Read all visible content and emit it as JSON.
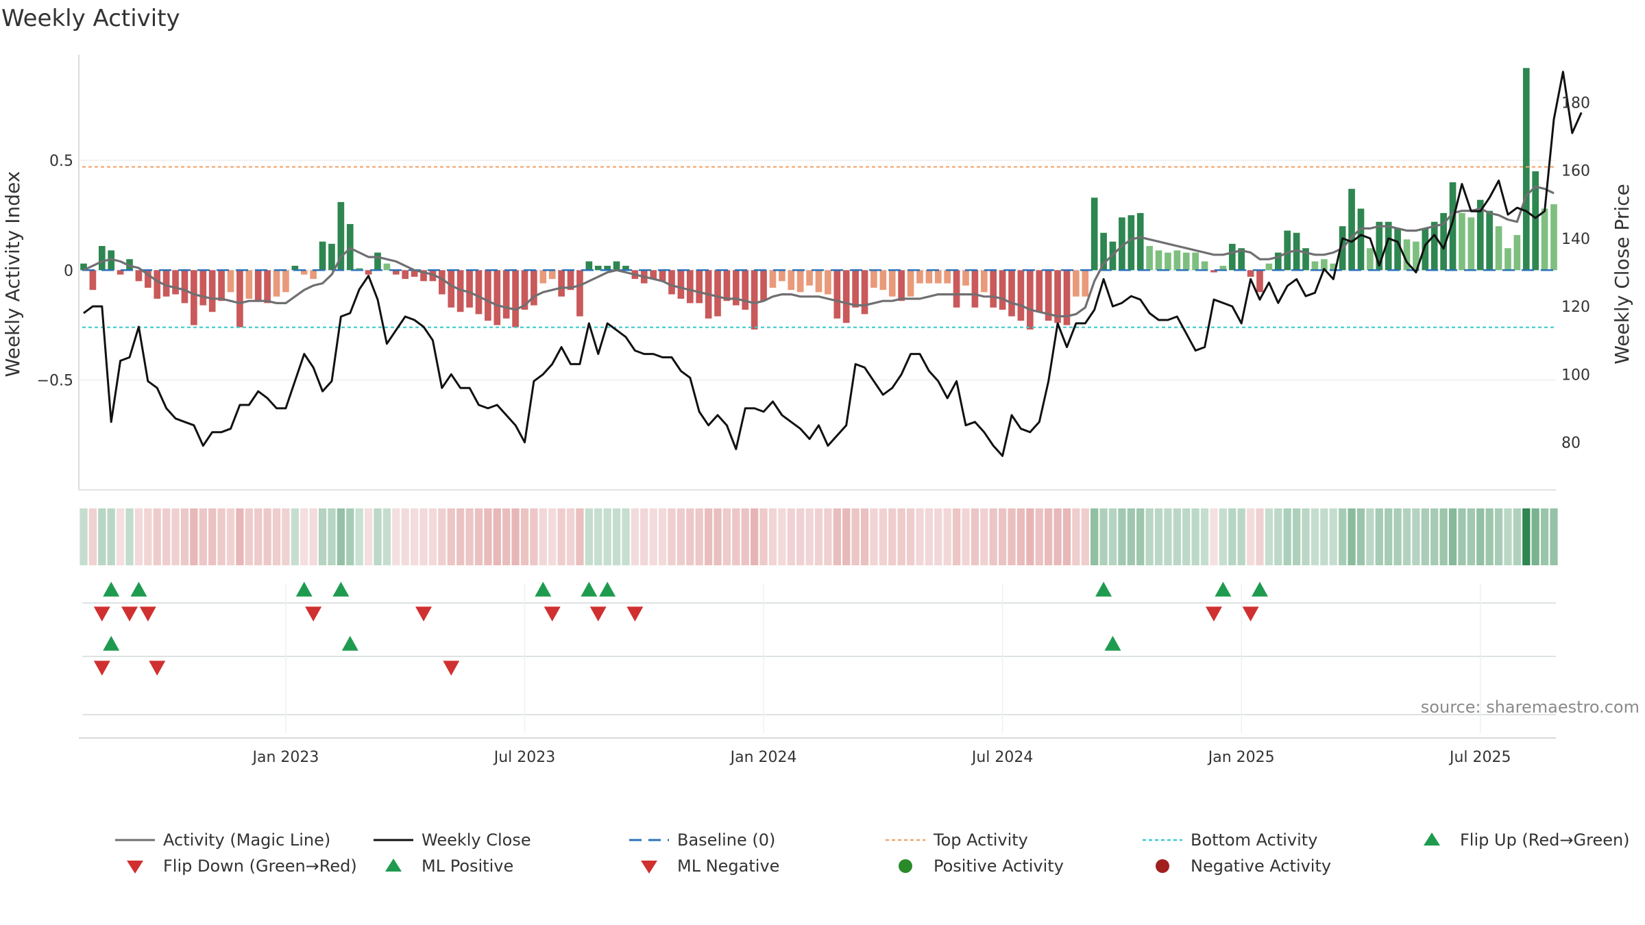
{
  "chart_data": {
    "type": "bar",
    "title": "Weekly Activity",
    "ylabel_left": "Weekly Activity Index",
    "ylabel_right": "Weekly Close Price",
    "source": "source: sharemaestro.com",
    "y_left": {
      "range": [
        -1,
        0.98
      ],
      "ticks": [
        {
          "v": 0.5,
          "label": "0.5"
        },
        {
          "v": 0,
          "label": "0"
        },
        {
          "v": -0.5,
          "label": "−0.5"
        }
      ]
    },
    "y_right": {
      "range": [
        66,
        194
      ],
      "ticks": [
        {
          "v": 180,
          "label": "180"
        },
        {
          "v": 160,
          "label": "160"
        },
        {
          "v": 140,
          "label": "140"
        },
        {
          "v": 120,
          "label": "120"
        },
        {
          "v": 100,
          "label": "100"
        },
        {
          "v": 80,
          "label": "80"
        }
      ]
    },
    "x_ticks": [
      {
        "week": 22,
        "label": "Jan 2023"
      },
      {
        "week": 48,
        "label": "Jul 2023"
      },
      {
        "week": 74,
        "label": "Jan 2024"
      },
      {
        "week": 100,
        "label": "Jul 2024"
      },
      {
        "week": 126,
        "label": "Jan 2025"
      },
      {
        "week": 152,
        "label": "Jul 2025"
      }
    ],
    "top_activity": 0.47,
    "bottom_activity": -0.26,
    "activity": [
      0.03,
      -0.09,
      0.11,
      0.09,
      -0.02,
      0.05,
      -0.05,
      -0.08,
      -0.13,
      -0.12,
      -0.11,
      -0.15,
      -0.25,
      -0.16,
      -0.19,
      -0.14,
      -0.1,
      -0.26,
      -0.13,
      -0.14,
      -0.15,
      -0.12,
      -0.1,
      0.02,
      -0.02,
      -0.04,
      0.13,
      0.12,
      0.31,
      0.21,
      0.01,
      -0.02,
      0.08,
      0.03,
      -0.02,
      -0.04,
      -0.03,
      -0.05,
      -0.05,
      -0.11,
      -0.17,
      -0.19,
      -0.17,
      -0.2,
      -0.23,
      -0.25,
      -0.22,
      -0.26,
      -0.18,
      -0.16,
      -0.06,
      -0.04,
      -0.12,
      -0.09,
      -0.21,
      0.04,
      0.02,
      0.02,
      0.04,
      0.02,
      -0.04,
      -0.06,
      -0.04,
      -0.05,
      -0.11,
      -0.13,
      -0.15,
      -0.15,
      -0.22,
      -0.21,
      -0.14,
      -0.16,
      -0.18,
      -0.27,
      -0.14,
      -0.08,
      -0.05,
      -0.09,
      -0.1,
      -0.07,
      -0.1,
      -0.11,
      -0.22,
      -0.24,
      -0.17,
      -0.2,
      -0.08,
      -0.09,
      -0.12,
      -0.14,
      -0.12,
      -0.06,
      -0.06,
      -0.06,
      -0.06,
      -0.17,
      -0.07,
      -0.17,
      -0.1,
      -0.17,
      -0.18,
      -0.21,
      -0.23,
      -0.27,
      -0.19,
      -0.23,
      -0.24,
      -0.25,
      -0.12,
      -0.12,
      0.33,
      0.17,
      0.13,
      0.24,
      0.25,
      0.26,
      0.11,
      0.09,
      0.08,
      0.09,
      0.08,
      0.08,
      0.04,
      -0.01,
      0.02,
      0.12,
      0.1,
      -0.03,
      -0.1,
      0.03,
      0.08,
      0.18,
      0.17,
      0.1,
      0.04,
      0.05,
      0.03,
      0.2,
      0.37,
      0.28,
      0.1,
      0.22,
      0.22,
      0.19,
      0.14,
      0.13,
      0.19,
      0.22,
      0.26,
      0.4,
      0.26,
      0.24,
      0.32,
      0.27,
      0.2,
      0.1,
      0.16,
      0.92,
      0.45,
      0.28,
      0.3
    ],
    "magic_line": [
      0,
      0.02,
      0.04,
      0.05,
      0.04,
      0.02,
      0.01,
      -0.02,
      -0.05,
      -0.07,
      -0.08,
      -0.09,
      -0.11,
      -0.12,
      -0.13,
      -0.13,
      -0.14,
      -0.15,
      -0.14,
      -0.14,
      -0.14,
      -0.15,
      -0.15,
      -0.12,
      -0.09,
      -0.07,
      -0.06,
      -0.02,
      0.06,
      0.1,
      0.08,
      0.06,
      0.06,
      0.05,
      0.04,
      0.02,
      0.0,
      -0.01,
      -0.02,
      -0.04,
      -0.07,
      -0.09,
      -0.1,
      -0.12,
      -0.14,
      -0.16,
      -0.17,
      -0.18,
      -0.16,
      -0.12,
      -0.1,
      -0.09,
      -0.08,
      -0.08,
      -0.07,
      -0.05,
      -0.03,
      -0.01,
      0.0,
      -0.01,
      -0.02,
      -0.03,
      -0.04,
      -0.05,
      -0.07,
      -0.08,
      -0.09,
      -0.1,
      -0.11,
      -0.12,
      -0.13,
      -0.13,
      -0.14,
      -0.15,
      -0.14,
      -0.12,
      -0.11,
      -0.11,
      -0.12,
      -0.12,
      -0.12,
      -0.13,
      -0.14,
      -0.15,
      -0.16,
      -0.16,
      -0.15,
      -0.14,
      -0.14,
      -0.13,
      -0.13,
      -0.13,
      -0.12,
      -0.11,
      -0.11,
      -0.11,
      -0.11,
      -0.11,
      -0.12,
      -0.12,
      -0.13,
      -0.15,
      -0.16,
      -0.18,
      -0.19,
      -0.2,
      -0.21,
      -0.21,
      -0.2,
      -0.17,
      -0.05,
      0.03,
      0.07,
      0.11,
      0.14,
      0.15,
      0.14,
      0.13,
      0.12,
      0.11,
      0.1,
      0.09,
      0.08,
      0.07,
      0.07,
      0.08,
      0.09,
      0.08,
      0.05,
      0.05,
      0.06,
      0.08,
      0.09,
      0.08,
      0.07,
      0.07,
      0.08,
      0.1,
      0.15,
      0.19,
      0.19,
      0.2,
      0.2,
      0.19,
      0.18,
      0.18,
      0.19,
      0.2,
      0.21,
      0.26,
      0.27,
      0.27,
      0.28,
      0.26,
      0.25,
      0.23,
      0.22,
      0.34,
      0.38,
      0.37,
      0.35
    ],
    "weekly_close": [
      118,
      120,
      120,
      86,
      104,
      105,
      114,
      98,
      96,
      90,
      87,
      86,
      85,
      79,
      83,
      83,
      84,
      91,
      91,
      95,
      93,
      90,
      90,
      98,
      106,
      102,
      95,
      98,
      117,
      118,
      125,
      129,
      122,
      109,
      113,
      117,
      116,
      114,
      110,
      96,
      100,
      96,
      96,
      91,
      90,
      91,
      88,
      85,
      80,
      98,
      100,
      103,
      108,
      103,
      103,
      115,
      106,
      115,
      113,
      111,
      107,
      106,
      106,
      105,
      105,
      101,
      99,
      89,
      85,
      88,
      85,
      78,
      90,
      90,
      89,
      92,
      88,
      86,
      84,
      81,
      85,
      79,
      82,
      85,
      103,
      102,
      98,
      94,
      96,
      100,
      106,
      106,
      101,
      98,
      93,
      98,
      85,
      86,
      83,
      79,
      76,
      88,
      84,
      83,
      86,
      98,
      115,
      108,
      115,
      115,
      119,
      128,
      120,
      121,
      123,
      122,
      118,
      116,
      116,
      117,
      112,
      107,
      108,
      122,
      121,
      120,
      115,
      128,
      122,
      127,
      121,
      126,
      128,
      123,
      124,
      131,
      128,
      140,
      139,
      141,
      140,
      132,
      140,
      139,
      133,
      130,
      138,
      141,
      137,
      145,
      156,
      148,
      148,
      152,
      157,
      147,
      149,
      148,
      146,
      148,
      175,
      189,
      171,
      177
    ],
    "flip_up_weeks": [
      3,
      6,
      24,
      28,
      50,
      55,
      57,
      111,
      124,
      128
    ],
    "flip_down_weeks": [
      2,
      5,
      7,
      25,
      37,
      51,
      56,
      60,
      123,
      127
    ],
    "ml_positive_weeks": [
      3,
      29,
      112
    ],
    "ml_negative_weeks": [
      2,
      8,
      40
    ],
    "legend": [
      "Activity (Magic Line)",
      "Weekly Close",
      "Baseline (0)",
      "Top Activity",
      "Bottom Activity",
      "Flip Up (Red→Green)",
      "Flip Down (Green→Red)",
      "ML Positive",
      "ML Negative",
      "Positive Activity",
      "Negative Activity"
    ],
    "colors": {
      "green_dark": "#2e8650",
      "green_light": "#7ebf7f",
      "red_dark": "#c9595a",
      "red_light": "#e99a7a",
      "magic_line": "#6f6f72",
      "close_line": "#111111",
      "baseline": "#2a72b8",
      "top": "#f0a56b",
      "bottom": "#3ec9cf",
      "flip_up": "#1f9b4f",
      "flip_down": "#d03030",
      "positive_dot": "#2a8a2a",
      "negative_dot": "#a11f1f"
    }
  }
}
